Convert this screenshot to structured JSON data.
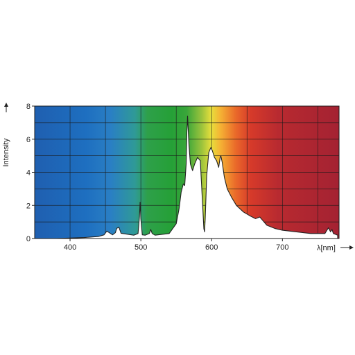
{
  "chart_data": {
    "type": "area",
    "ylabel": "Intensity",
    "xlabel": "λ[nm]",
    "xlim": [
      350,
      780
    ],
    "ylim": [
      0,
      8
    ],
    "xticks": [
      400,
      500,
      600,
      700
    ],
    "yticks": [
      0,
      2,
      4,
      6,
      8
    ],
    "x_gridlines": [
      400,
      450,
      500,
      550,
      600,
      650,
      700,
      750
    ],
    "grid": true,
    "background": "visible-spectrum gradient (blue to deep red)",
    "series": [
      {
        "x": [
          380,
          400,
          420,
          440,
          448,
          452,
          460,
          464,
          466,
          469,
          472,
          490,
          496,
          498,
          499,
          500,
          502,
          506,
          512,
          514,
          516,
          520,
          540,
          550,
          554,
          557,
          560,
          562,
          564,
          565,
          566,
          568,
          570,
          573,
          576,
          580,
          584,
          587,
          589,
          590,
          591,
          593,
          596,
          599,
          601,
          604,
          607,
          610,
          612,
          613,
          615,
          618,
          622,
          628,
          635,
          645,
          655,
          662,
          668,
          672,
          678,
          690,
          700,
          720,
          740,
          760,
          765,
          768,
          770,
          772,
          775,
          778
        ],
        "y": [
          0.0,
          0.03,
          0.06,
          0.12,
          0.22,
          0.45,
          0.22,
          0.35,
          0.62,
          0.68,
          0.32,
          0.2,
          0.3,
          1.3,
          2.2,
          1.2,
          0.22,
          0.2,
          0.3,
          0.55,
          0.3,
          0.2,
          0.3,
          0.9,
          1.8,
          2.8,
          3.3,
          3.2,
          4.5,
          6.4,
          7.4,
          5.6,
          4.5,
          4.1,
          4.5,
          4.9,
          4.7,
          2.2,
          0.6,
          0.4,
          1.2,
          3.8,
          5.2,
          5.5,
          5.3,
          4.9,
          4.7,
          4.3,
          4.9,
          5.0,
          4.6,
          3.7,
          3.0,
          2.5,
          2.0,
          1.6,
          1.35,
          1.2,
          1.3,
          1.1,
          0.8,
          0.6,
          0.5,
          0.4,
          0.3,
          0.3,
          0.65,
          0.4,
          0.55,
          0.3,
          0.25,
          0.2
        ]
      }
    ]
  }
}
